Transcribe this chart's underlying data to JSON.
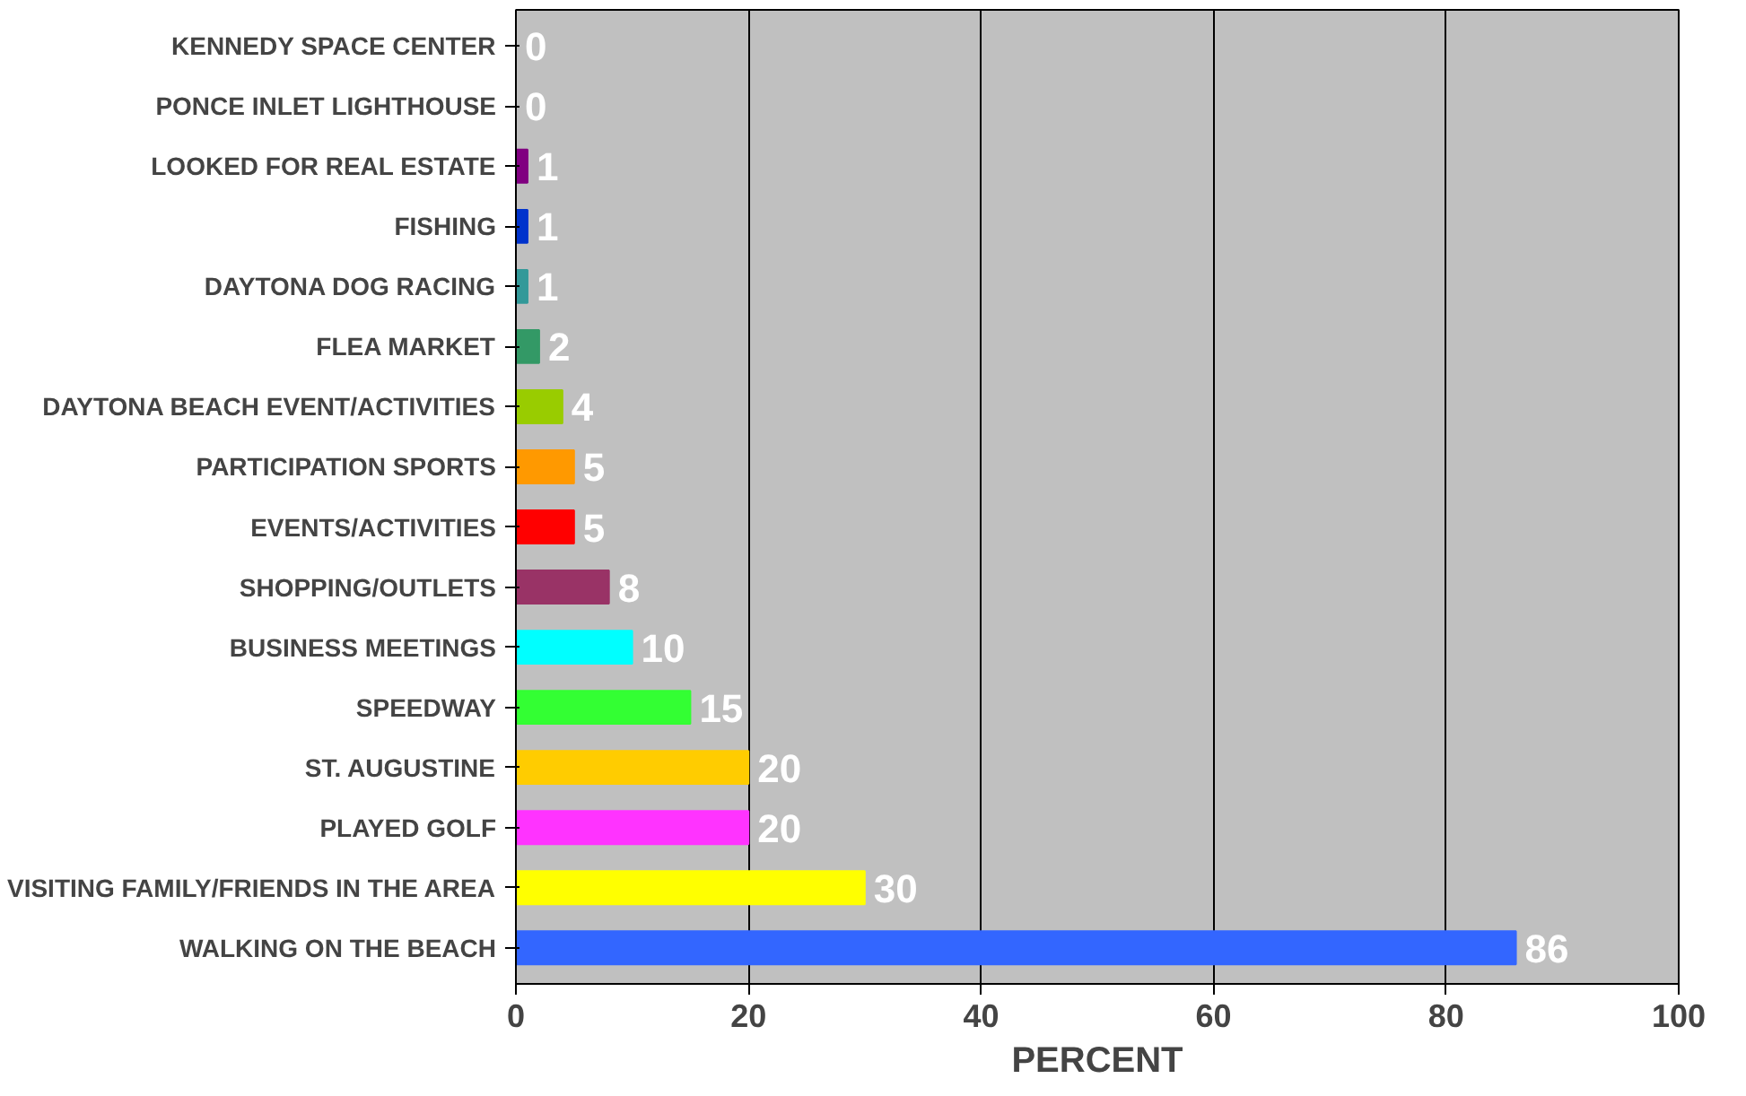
{
  "chart_data": {
    "type": "bar",
    "orientation": "horizontal",
    "xlabel": "PERCENT",
    "categories": [
      "KENNEDY SPACE CENTER",
      "PONCE INLET LIGHTHOUSE",
      "LOOKED FOR REAL ESTATE",
      "FISHING",
      "DAYTONA DOG RACING",
      "FLEA MARKET",
      "DAYTONA BEACH EVENT/ACTIVITIES",
      "PARTICIPATION SPORTS",
      "EVENTS/ACTIVITIES",
      "SHOPPING/OUTLETS",
      "BUSINESS MEETINGS",
      "SPEEDWAY",
      "ST. AUGUSTINE",
      "PLAYED GOLF",
      "VISITING FAMILY/FRIENDS IN THE AREA",
      "WALKING ON THE BEACH"
    ],
    "values": [
      0,
      0,
      1,
      1,
      1,
      2,
      4,
      5,
      5,
      8,
      10,
      15,
      20,
      20,
      30,
      86
    ],
    "colors": [
      "#993300",
      "#ffffff",
      "#800080",
      "#0033cc",
      "#339999",
      "#339966",
      "#99cc00",
      "#ff9900",
      "#ff0000",
      "#993366",
      "#00ffff",
      "#33ff33",
      "#ffcc00",
      "#ff33ff",
      "#ffff00",
      "#3366ff"
    ],
    "xlim": [
      0,
      100
    ],
    "xticks": [
      0,
      20,
      40,
      60,
      80,
      100
    ],
    "grid": "x",
    "legend": false,
    "data_labels": true
  }
}
